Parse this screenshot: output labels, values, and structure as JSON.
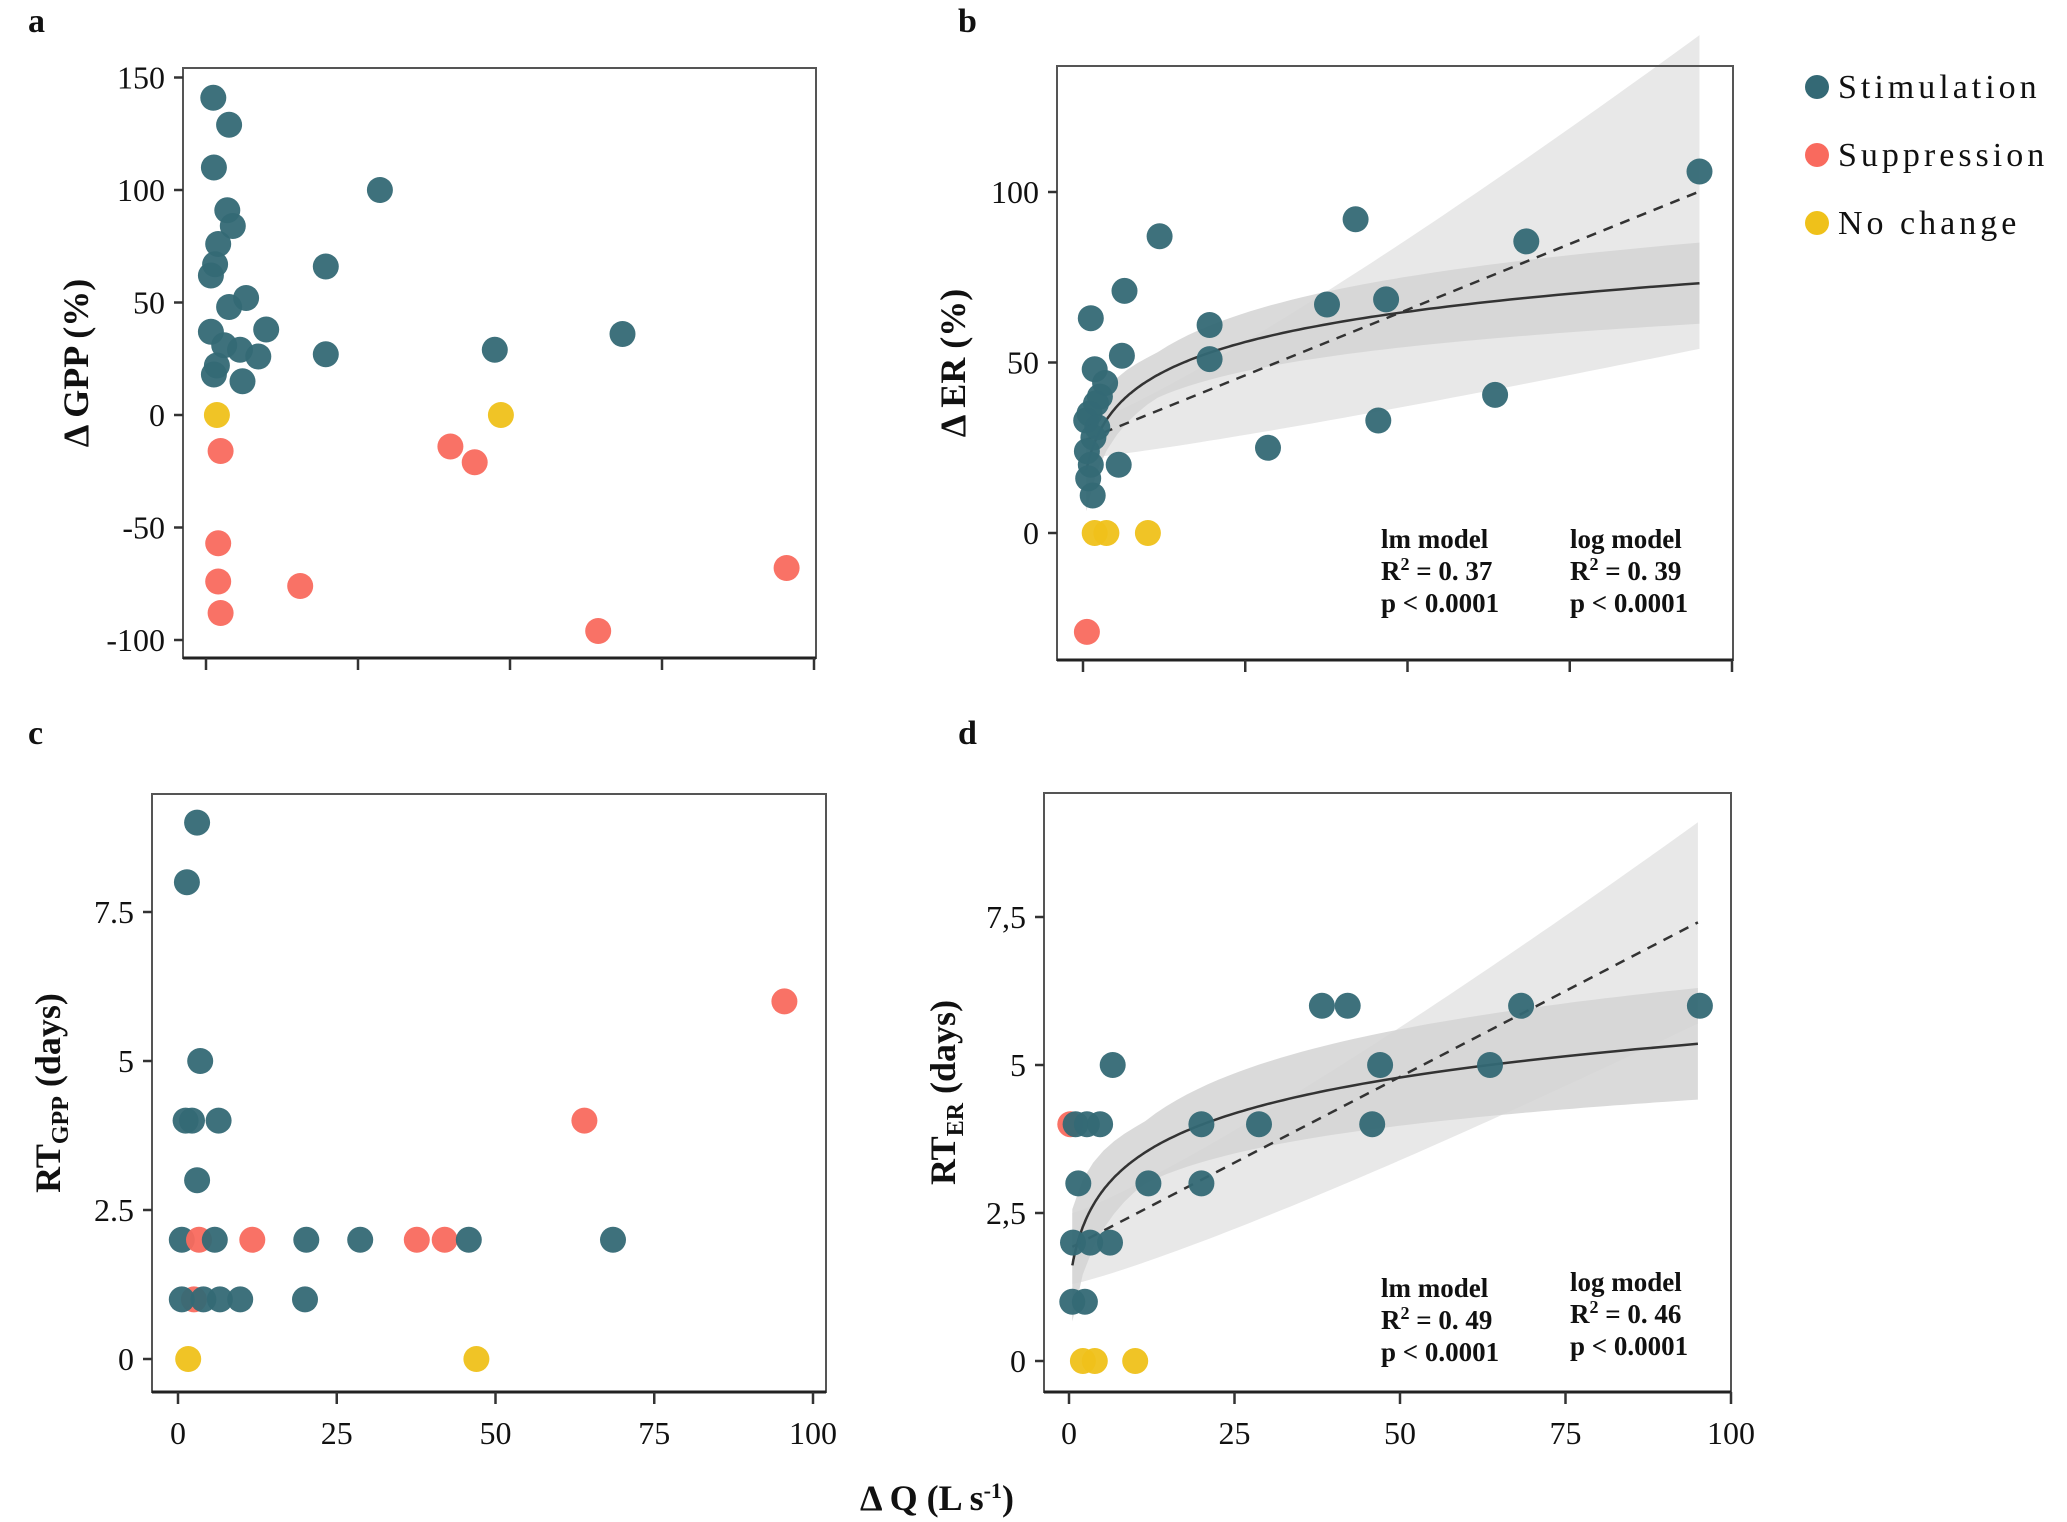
{
  "colors": {
    "stimulation": "#346975",
    "suppression": "#F96A5E",
    "no_change": "#EFC11A",
    "ci_outer": "#E8E8E8",
    "ci_inner": "#D4D4D4",
    "axis": "#333333"
  },
  "legend": {
    "items": [
      {
        "key": "stimulation",
        "label": "Stimulation"
      },
      {
        "key": "suppression",
        "label": "Suppression"
      },
      {
        "key": "no_change",
        "label": "No change"
      }
    ],
    "placement": "top-right"
  },
  "shared_xlabel": "Δ Q (L s-1)",
  "shared_xlabel_main": "Δ Q (L s",
  "shared_xlabel_sup": "-1",
  "shared_xlabel_close": ")",
  "chart_data": [
    {
      "id": "a",
      "letter": "a",
      "type": "scatter",
      "xlabel": "",
      "ylabel": "Δ GPP (%)",
      "xlim": [
        0,
        100
      ],
      "ylim": [
        -100,
        150
      ],
      "xticks": [
        0,
        25,
        50,
        75,
        100
      ],
      "xtick_labels": [
        "",
        "",
        "",
        "",
        ""
      ],
      "yticks": [
        150,
        100,
        50,
        0,
        -50,
        -100
      ],
      "ytick_labels": [
        "150",
        "100",
        "50",
        "0",
        "-50",
        "-100"
      ],
      "points": [
        {
          "x": 1.2,
          "y": 141,
          "g": "stimulation"
        },
        {
          "x": 3.8,
          "y": 129,
          "g": "stimulation"
        },
        {
          "x": 1.3,
          "y": 110,
          "g": "stimulation"
        },
        {
          "x": 28.6,
          "y": 100,
          "g": "stimulation"
        },
        {
          "x": 3.5,
          "y": 91,
          "g": "stimulation"
        },
        {
          "x": 4.4,
          "y": 84,
          "g": "stimulation"
        },
        {
          "x": 2.0,
          "y": 76,
          "g": "stimulation"
        },
        {
          "x": 1.5,
          "y": 67,
          "g": "stimulation"
        },
        {
          "x": 0.8,
          "y": 62,
          "g": "stimulation"
        },
        {
          "x": 19.7,
          "y": 66,
          "g": "stimulation"
        },
        {
          "x": 6.6,
          "y": 52,
          "g": "stimulation"
        },
        {
          "x": 3.8,
          "y": 48,
          "g": "stimulation"
        },
        {
          "x": 9.9,
          "y": 38,
          "g": "stimulation"
        },
        {
          "x": 0.8,
          "y": 37,
          "g": "stimulation"
        },
        {
          "x": 5.6,
          "y": 29,
          "g": "stimulation"
        },
        {
          "x": 8.6,
          "y": 26,
          "g": "stimulation"
        },
        {
          "x": 3.0,
          "y": 31,
          "g": "stimulation"
        },
        {
          "x": 1.8,
          "y": 22,
          "g": "stimulation"
        },
        {
          "x": 1.3,
          "y": 18,
          "g": "stimulation"
        },
        {
          "x": 6.0,
          "y": 15,
          "g": "stimulation"
        },
        {
          "x": 19.7,
          "y": 27,
          "g": "stimulation"
        },
        {
          "x": 47.5,
          "y": 29,
          "g": "stimulation"
        },
        {
          "x": 68.5,
          "y": 36,
          "g": "stimulation"
        },
        {
          "x": 1.8,
          "y": 0,
          "g": "no_change"
        },
        {
          "x": 48.5,
          "y": 0,
          "g": "no_change"
        },
        {
          "x": 2.4,
          "y": -16,
          "g": "suppression"
        },
        {
          "x": 40.2,
          "y": -14,
          "g": "suppression"
        },
        {
          "x": 44.2,
          "y": -21,
          "g": "suppression"
        },
        {
          "x": 2.0,
          "y": -57,
          "g": "suppression"
        },
        {
          "x": 2.0,
          "y": -74,
          "g": "suppression"
        },
        {
          "x": 15.5,
          "y": -76,
          "g": "suppression"
        },
        {
          "x": 2.4,
          "y": -88,
          "g": "suppression"
        },
        {
          "x": 64.5,
          "y": -96,
          "g": "suppression"
        },
        {
          "x": 95.5,
          "y": -68,
          "g": "suppression"
        }
      ]
    },
    {
      "id": "b",
      "letter": "b",
      "type": "scatter",
      "xlabel": "",
      "ylabel": "Δ ER (%)",
      "xlim": [
        0,
        100
      ],
      "ylim": [
        -35,
        135
      ],
      "xticks": [
        0,
        25,
        50,
        75,
        100
      ],
      "xtick_labels": [
        "",
        "",
        "",
        "",
        ""
      ],
      "yticks": [
        100,
        50,
        0
      ],
      "ytick_labels": [
        "100",
        "50",
        "0"
      ],
      "points": [
        {
          "x": 1.2,
          "y": 63,
          "g": "stimulation"
        },
        {
          "x": 1.8,
          "y": 48,
          "g": "stimulation"
        },
        {
          "x": 3.4,
          "y": 44,
          "g": "stimulation"
        },
        {
          "x": 2.6,
          "y": 40,
          "g": "stimulation"
        },
        {
          "x": 2.0,
          "y": 38,
          "g": "stimulation"
        },
        {
          "x": 1.0,
          "y": 35,
          "g": "stimulation"
        },
        {
          "x": 0.5,
          "y": 33,
          "g": "stimulation"
        },
        {
          "x": 2.2,
          "y": 31,
          "g": "stimulation"
        },
        {
          "x": 1.6,
          "y": 28,
          "g": "stimulation"
        },
        {
          "x": 0.6,
          "y": 24,
          "g": "stimulation"
        },
        {
          "x": 1.2,
          "y": 20,
          "g": "stimulation"
        },
        {
          "x": 0.8,
          "y": 16,
          "g": "stimulation"
        },
        {
          "x": 1.5,
          "y": 11,
          "g": "stimulation"
        },
        {
          "x": 5.5,
          "y": 20,
          "g": "stimulation"
        },
        {
          "x": 6.0,
          "y": 52,
          "g": "stimulation"
        },
        {
          "x": 6.4,
          "y": 71,
          "g": "stimulation"
        },
        {
          "x": 11.8,
          "y": 87,
          "g": "stimulation"
        },
        {
          "x": 19.5,
          "y": 61,
          "g": "stimulation"
        },
        {
          "x": 19.5,
          "y": 51,
          "g": "stimulation"
        },
        {
          "x": 28.5,
          "y": 25,
          "g": "stimulation"
        },
        {
          "x": 37.6,
          "y": 67,
          "g": "stimulation"
        },
        {
          "x": 42.0,
          "y": 92,
          "g": "stimulation"
        },
        {
          "x": 45.5,
          "y": 33,
          "g": "stimulation"
        },
        {
          "x": 46.7,
          "y": 68.5,
          "g": "stimulation"
        },
        {
          "x": 63.5,
          "y": 40.5,
          "g": "stimulation"
        },
        {
          "x": 68.3,
          "y": 85.5,
          "g": "stimulation"
        },
        {
          "x": 95.0,
          "y": 106,
          "g": "stimulation"
        },
        {
          "x": 1.8,
          "y": 0,
          "g": "no_change"
        },
        {
          "x": 3.6,
          "y": 0,
          "g": "no_change"
        },
        {
          "x": 10.0,
          "y": 0,
          "g": "no_change"
        },
        {
          "x": 0.6,
          "y": -29,
          "g": "suppression"
        }
      ],
      "fits": {
        "lm": {
          "intercept": 27,
          "slope": 0.77,
          "x_range": [
            0.5,
            95
          ],
          "ci_lo": [
            22,
            54
          ],
          "ci_hi": [
            32,
            146
          ]
        },
        "log": {
          "a": 13,
          "b": 13.2,
          "x_range": [
            0.5,
            95
          ],
          "band": 12
        }
      },
      "stats": [
        {
          "model": "lm model",
          "r2": "R² = 0. 37",
          "r2_main": "R",
          "r2_sup": "2",
          "r2_rest": " = 0. 37",
          "p": "p < 0.0001"
        },
        {
          "model": "log model",
          "r2": "R² = 0. 39",
          "r2_main": "R",
          "r2_sup": "2",
          "r2_rest": " = 0. 39",
          "p": "p < 0.0001"
        }
      ]
    },
    {
      "id": "c",
      "letter": "c",
      "type": "scatter",
      "xlabel": "",
      "ylabel": "RT",
      "ylabel_sub": "GPP",
      "ylabel_rest": " (days)",
      "xlim": [
        0,
        100
      ],
      "ylim": [
        -0.3,
        9.6
      ],
      "xticks": [
        0,
        25,
        50,
        75,
        100
      ],
      "xtick_labels": [
        "0",
        "25",
        "50",
        "75",
        "100"
      ],
      "yticks": [
        7.5,
        5,
        2.5,
        0
      ],
      "ytick_labels": [
        "7.5",
        "5",
        "2.5",
        "0"
      ],
      "points": [
        {
          "x": 3.0,
          "y": 9,
          "g": "stimulation"
        },
        {
          "x": 1.4,
          "y": 8,
          "g": "stimulation"
        },
        {
          "x": 3.5,
          "y": 5,
          "g": "stimulation"
        },
        {
          "x": 1.2,
          "y": 4,
          "g": "stimulation"
        },
        {
          "x": 2.2,
          "y": 4,
          "g": "stimulation"
        },
        {
          "x": 6.4,
          "y": 4,
          "g": "stimulation"
        },
        {
          "x": 3.0,
          "y": 3,
          "g": "stimulation"
        },
        {
          "x": 0.6,
          "y": 2,
          "g": "stimulation"
        },
        {
          "x": 3.3,
          "y": 2,
          "g": "suppression"
        },
        {
          "x": 5.8,
          "y": 2,
          "g": "stimulation"
        },
        {
          "x": 11.7,
          "y": 2,
          "g": "suppression"
        },
        {
          "x": 20.2,
          "y": 2,
          "g": "stimulation"
        },
        {
          "x": 28.7,
          "y": 2,
          "g": "stimulation"
        },
        {
          "x": 37.6,
          "y": 2,
          "g": "suppression"
        },
        {
          "x": 42.0,
          "y": 2,
          "g": "suppression"
        },
        {
          "x": 45.8,
          "y": 2,
          "g": "stimulation"
        },
        {
          "x": 68.5,
          "y": 2,
          "g": "stimulation"
        },
        {
          "x": 2.5,
          "y": 1,
          "g": "suppression"
        },
        {
          "x": 0.6,
          "y": 1,
          "g": "stimulation"
        },
        {
          "x": 4.0,
          "y": 1,
          "g": "stimulation"
        },
        {
          "x": 6.6,
          "y": 1,
          "g": "stimulation"
        },
        {
          "x": 9.8,
          "y": 1,
          "g": "stimulation"
        },
        {
          "x": 20.0,
          "y": 1,
          "g": "stimulation"
        },
        {
          "x": 1.6,
          "y": 0,
          "g": "no_change"
        },
        {
          "x": 47.0,
          "y": 0,
          "g": "no_change"
        },
        {
          "x": 64.0,
          "y": 4,
          "g": "suppression"
        },
        {
          "x": 95.5,
          "y": 6,
          "g": "suppression"
        }
      ]
    },
    {
      "id": "d",
      "letter": "d",
      "type": "scatter",
      "xlabel": "",
      "ylabel": "RT",
      "ylabel_sub": "ER",
      "ylabel_rest": " (days)",
      "xlim": [
        0,
        100
      ],
      "ylim": [
        -0.5,
        9.4
      ],
      "xticks": [
        0,
        25,
        50,
        75,
        100
      ],
      "xtick_labels": [
        "0",
        "25",
        "50",
        "75",
        "100"
      ],
      "yticks": [
        7.5,
        5,
        2.5,
        0
      ],
      "ytick_labels": [
        "7,5",
        "5",
        "2,5",
        "0"
      ],
      "points": [
        {
          "x": 0.2,
          "y": 4,
          "g": "suppression"
        },
        {
          "x": 1.0,
          "y": 4,
          "g": "stimulation"
        },
        {
          "x": 2.7,
          "y": 4,
          "g": "stimulation"
        },
        {
          "x": 4.7,
          "y": 4,
          "g": "stimulation"
        },
        {
          "x": 6.6,
          "y": 5,
          "g": "stimulation"
        },
        {
          "x": 1.4,
          "y": 3,
          "g": "stimulation"
        },
        {
          "x": 12.0,
          "y": 3,
          "g": "stimulation"
        },
        {
          "x": 20.0,
          "y": 3,
          "g": "stimulation"
        },
        {
          "x": 20.0,
          "y": 4,
          "g": "stimulation"
        },
        {
          "x": 28.7,
          "y": 4,
          "g": "stimulation"
        },
        {
          "x": 0.6,
          "y": 2,
          "g": "stimulation"
        },
        {
          "x": 3.2,
          "y": 2,
          "g": "stimulation"
        },
        {
          "x": 6.2,
          "y": 2,
          "g": "stimulation"
        },
        {
          "x": 0.5,
          "y": 1,
          "g": "stimulation"
        },
        {
          "x": 2.4,
          "y": 1,
          "g": "stimulation"
        },
        {
          "x": 38.2,
          "y": 6,
          "g": "stimulation"
        },
        {
          "x": 42.1,
          "y": 6,
          "g": "stimulation"
        },
        {
          "x": 68.3,
          "y": 6,
          "g": "stimulation"
        },
        {
          "x": 95.3,
          "y": 6,
          "g": "stimulation"
        },
        {
          "x": 47.0,
          "y": 5,
          "g": "stimulation"
        },
        {
          "x": 63.6,
          "y": 5,
          "g": "stimulation"
        },
        {
          "x": 45.8,
          "y": 4,
          "g": "stimulation"
        },
        {
          "x": 2.1,
          "y": 0,
          "g": "no_change"
        },
        {
          "x": 3.9,
          "y": 0,
          "g": "no_change"
        },
        {
          "x": 10.0,
          "y": 0,
          "g": "no_change"
        }
      ],
      "fits": {
        "lm": {
          "intercept": 1.9,
          "slope": 0.058,
          "x_range": [
            0.5,
            95
          ],
          "ci_lo": [
            1.3,
            5.7
          ],
          "ci_hi": [
            2.5,
            9.1
          ]
        },
        "log": {
          "a": 1.25,
          "b": 0.9,
          "x_range": [
            0.5,
            95
          ],
          "band": 0.95
        }
      },
      "stats": [
        {
          "model": "lm model",
          "r2": "R² = 0. 49",
          "r2_main": "R",
          "r2_sup": "2",
          "r2_rest": " = 0. 49",
          "p": "p < 0.0001"
        },
        {
          "model": "log model",
          "r2": "R² = 0. 46",
          "r2_main": "R",
          "r2_sup": "2",
          "r2_rest": " = 0. 46",
          "p": "p < 0.0001"
        }
      ]
    }
  ]
}
